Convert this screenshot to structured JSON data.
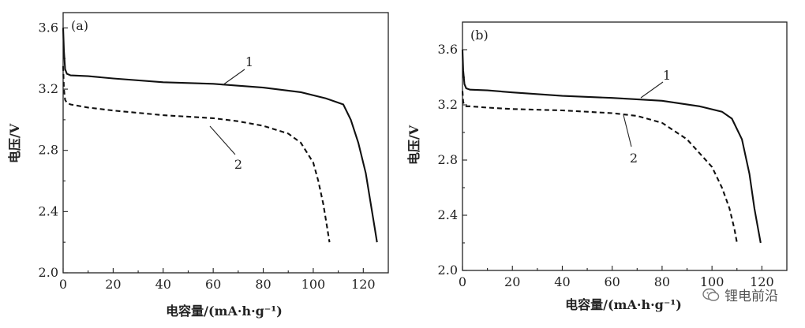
{
  "chart_data": [
    {
      "type": "line",
      "panel_label": "(a)",
      "xlabel": "电容量/(mA·h·g⁻¹)",
      "ylabel": "电压/V",
      "xlim": [
        0,
        130
      ],
      "ylim": [
        2.0,
        3.7
      ],
      "x_ticks": [
        "0",
        "20",
        "40",
        "60",
        "80",
        "100",
        "120"
      ],
      "y_ticks": [
        "2.0",
        "2.4",
        "2.8",
        "3.2",
        "3.6"
      ],
      "series": [
        {
          "name": "1",
          "style": "solid",
          "x": [
            0,
            0.3,
            0.8,
            1.5,
            3,
            10,
            20,
            40,
            60,
            80,
            95,
            105,
            112,
            115,
            118,
            121,
            123,
            124.5,
            125.5
          ],
          "y": [
            3.6,
            3.45,
            3.33,
            3.3,
            3.29,
            3.285,
            3.27,
            3.245,
            3.235,
            3.21,
            3.18,
            3.14,
            3.1,
            3.0,
            2.85,
            2.65,
            2.45,
            2.3,
            2.2
          ]
        },
        {
          "name": "2",
          "style": "dashed",
          "x": [
            0,
            0.3,
            0.8,
            1.5,
            3,
            10,
            20,
            40,
            60,
            70,
            80,
            90,
            95,
            100,
            102,
            104,
            105.5,
            106.5
          ],
          "y": [
            3.35,
            3.2,
            3.13,
            3.11,
            3.1,
            3.08,
            3.06,
            3.03,
            3.01,
            2.99,
            2.96,
            2.91,
            2.85,
            2.72,
            2.6,
            2.45,
            2.3,
            2.2
          ]
        }
      ]
    },
    {
      "type": "line",
      "panel_label": "(b)",
      "xlabel": "电容量/(mA·h·g⁻¹)",
      "ylabel": "电压/V",
      "xlim": [
        0,
        130
      ],
      "ylim": [
        2.0,
        3.8
      ],
      "x_ticks": [
        "0",
        "20",
        "40",
        "60",
        "80",
        "100",
        "120"
      ],
      "y_ticks": [
        "2.0",
        "2.4",
        "2.8",
        "3.2",
        "3.6"
      ],
      "series": [
        {
          "name": "1",
          "style": "solid",
          "x": [
            0,
            0.3,
            0.8,
            1.5,
            3,
            10,
            20,
            40,
            60,
            80,
            95,
            104,
            108,
            112,
            115,
            117,
            118.5,
            119.5
          ],
          "y": [
            3.6,
            3.45,
            3.35,
            3.32,
            3.31,
            3.305,
            3.29,
            3.265,
            3.25,
            3.23,
            3.19,
            3.15,
            3.1,
            2.95,
            2.7,
            2.45,
            2.3,
            2.2
          ]
        },
        {
          "name": "2",
          "style": "dashed",
          "x": [
            0,
            0.3,
            0.8,
            1.5,
            3,
            10,
            20,
            40,
            60,
            70,
            80,
            90,
            100,
            104,
            107,
            109,
            110
          ],
          "y": [
            3.3,
            3.22,
            3.2,
            3.19,
            3.19,
            3.18,
            3.17,
            3.16,
            3.14,
            3.12,
            3.07,
            2.95,
            2.75,
            2.6,
            2.45,
            2.3,
            2.2
          ]
        }
      ]
    }
  ],
  "watermark": {
    "text": "锂电前沿",
    "icon": "wechat-icon"
  }
}
